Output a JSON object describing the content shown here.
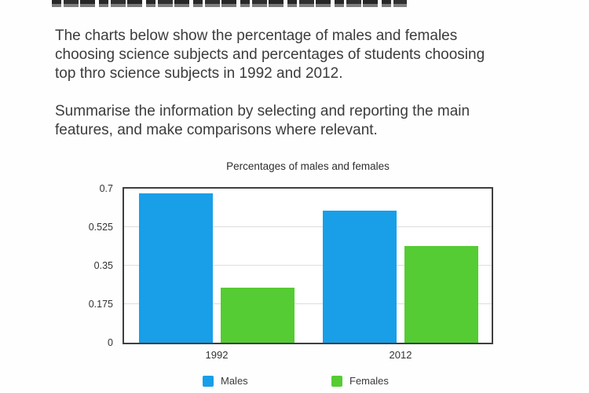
{
  "prompt": {
    "description_lines": [
      "The charts below show the percentage of males and females",
      "choosing science subjects and percentages of students choosing",
      "top thro science subjects in 1992 and 2012."
    ],
    "instruction_lines": [
      "Summarise the information by selecting and reporting the main",
      "features, and make comparisons where relevant."
    ]
  },
  "chart_data": {
    "type": "bar",
    "title": "Percentages of males and females",
    "categories": [
      "1992",
      "2012"
    ],
    "series": [
      {
        "name": "Males",
        "color": "#189fe8",
        "values": [
          0.68,
          0.6
        ]
      },
      {
        "name": "Females",
        "color": "#55cc33",
        "values": [
          0.25,
          0.44
        ]
      }
    ],
    "ylim": [
      0,
      0.7
    ],
    "yticks": [
      "0",
      "0.175",
      "0.35",
      "0.525",
      "0.7"
    ],
    "grid": true,
    "legend_position": "bottom"
  }
}
